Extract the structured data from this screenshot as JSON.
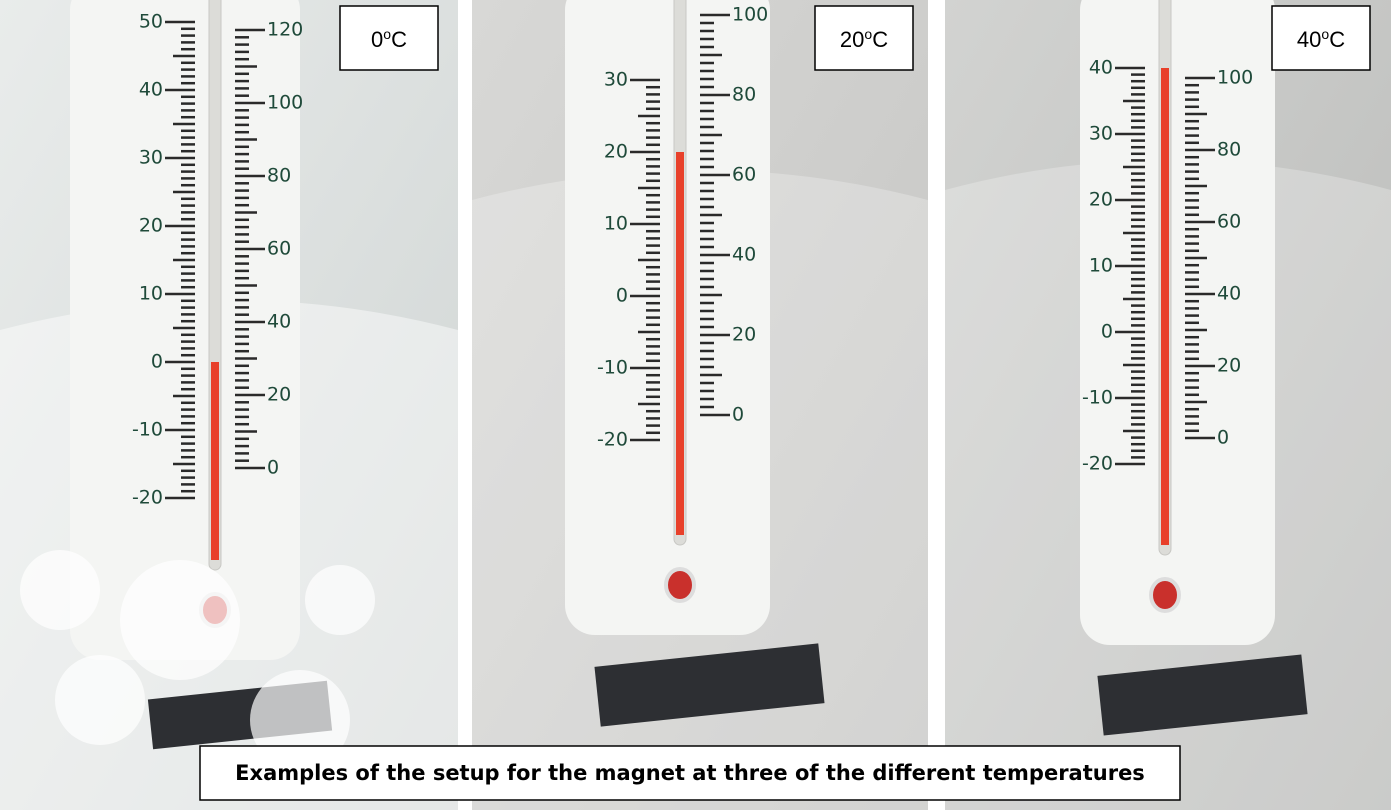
{
  "panels": [
    {
      "number": "0",
      "degree": "o",
      "unit": "C",
      "scale_left": [
        "50",
        "40",
        "30",
        "20",
        "10",
        "0",
        "-10",
        "-20"
      ],
      "scale_right": [
        "120",
        "100",
        "80",
        "60",
        "40",
        "20",
        "0"
      ]
    },
    {
      "number": "20",
      "degree": "o",
      "unit": "C",
      "scale_left": [
        "30",
        "20",
        "10",
        "0",
        "-10",
        "-20"
      ],
      "scale_right": [
        "100",
        "80",
        "60",
        "40",
        "20",
        "0"
      ]
    },
    {
      "number": "40",
      "degree": "o",
      "unit": "C",
      "scale_left": [
        "40",
        "30",
        "20",
        "10",
        "0",
        "-10",
        "-20"
      ],
      "scale_right": [
        "100",
        "80",
        "60",
        "40",
        "20",
        "0"
      ]
    }
  ],
  "caption": "Examples of the setup for the magnet at three of the different temperatures"
}
